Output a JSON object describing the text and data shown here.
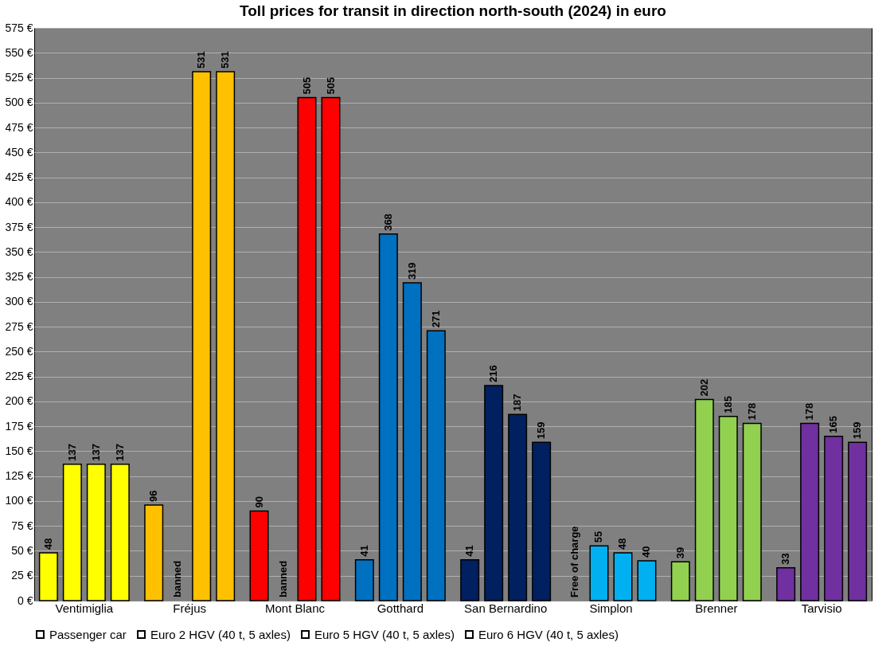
{
  "chart_data": {
    "type": "bar",
    "title": "Toll prices for transit in direction north-south (2024) in euro",
    "categories": [
      "Ventimiglia",
      "Fréjus",
      "Mont Blanc",
      "Gotthard",
      "San Bernardino",
      "Simplon",
      "Brenner",
      "Tarvisio"
    ],
    "series": [
      {
        "name": "Passenger car",
        "color": "#000000",
        "colors": [
          "#ffff00",
          "#ffc000",
          "#ff0000",
          "#0070c0",
          "#002060",
          "#00b0f0",
          "#92d050",
          "#7030a0"
        ],
        "values": [
          48,
          96,
          90,
          41,
          41,
          null,
          39,
          33
        ],
        "value_labels": [
          "48",
          "96",
          "90",
          "41",
          "41",
          "Free of charge",
          "39",
          "33"
        ]
      },
      {
        "name": "Euro 2 HGV (40 t, 5 axles)",
        "color": "#000000",
        "colors": [
          "#ffff00",
          "#ffc000",
          "#ff0000",
          "#0070c0",
          "#002060",
          "#00b0f0",
          "#92d050",
          "#7030a0"
        ],
        "values": [
          137,
          null,
          null,
          368,
          216,
          55,
          202,
          178
        ],
        "value_labels": [
          "137",
          "banned",
          "banned",
          "368",
          "216",
          "55",
          "202",
          "178"
        ]
      },
      {
        "name": "Euro 5 HGV (40 t, 5 axles)",
        "color": "#000000",
        "colors": [
          "#ffff00",
          "#ffc000",
          "#ff0000",
          "#0070c0",
          "#002060",
          "#00b0f0",
          "#92d050",
          "#7030a0"
        ],
        "values": [
          137,
          531,
          505,
          319,
          187,
          48,
          185,
          165
        ],
        "value_labels": [
          "137",
          "531",
          "505",
          "319",
          "187",
          "48",
          "185",
          "165"
        ]
      },
      {
        "name": "Euro 6 HGV (40 t, 5 axles)",
        "color": "#000000",
        "colors": [
          "#ffff00",
          "#ffc000",
          "#ff0000",
          "#0070c0",
          "#002060",
          "#00b0f0",
          "#92d050",
          "#7030a0"
        ],
        "values": [
          137,
          531,
          505,
          271,
          159,
          40,
          178,
          159
        ],
        "value_labels": [
          "137",
          "531",
          "505",
          "271",
          "159",
          "40",
          "178",
          "159"
        ]
      }
    ],
    "ylim": [
      0,
      575
    ],
    "yticks": [
      {
        "value": 0,
        "label": "0 €"
      },
      {
        "value": 25,
        "label": "25 €"
      },
      {
        "value": 50,
        "label": "50 €"
      },
      {
        "value": 75,
        "label": "75 €"
      },
      {
        "value": 100,
        "label": "100 €"
      },
      {
        "value": 125,
        "label": "125 €"
      },
      {
        "value": 150,
        "label": "150 €"
      },
      {
        "value": 175,
        "label": "175 €"
      },
      {
        "value": 200,
        "label": "200 €"
      },
      {
        "value": 225,
        "label": "225 €"
      },
      {
        "value": 250,
        "label": "250 €"
      },
      {
        "value": 275,
        "label": "275 €"
      },
      {
        "value": 300,
        "label": "300 €"
      },
      {
        "value": 325,
        "label": "325 €"
      },
      {
        "value": 350,
        "label": "350 €"
      },
      {
        "value": 375,
        "label": "375 €"
      },
      {
        "value": 400,
        "label": "400 €"
      },
      {
        "value": 425,
        "label": "425 €"
      },
      {
        "value": 450,
        "label": "450 €"
      },
      {
        "value": 475,
        "label": "475 €"
      },
      {
        "value": 500,
        "label": "500 €"
      },
      {
        "value": 525,
        "label": "525 €"
      },
      {
        "value": 550,
        "label": "550 €"
      },
      {
        "value": 575,
        "label": "575 €"
      }
    ],
    "grid": "y",
    "legend": "bottom"
  }
}
